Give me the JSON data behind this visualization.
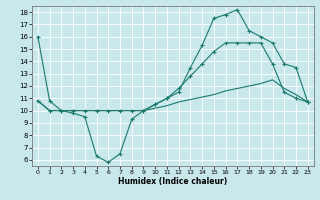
{
  "bg_color": "#c8e8ec",
  "grid_color": "#b0d8dc",
  "line_color": "#1a7a6e",
  "xlabel": "Humidex (Indice chaleur)",
  "xlim": [
    -0.5,
    23.5
  ],
  "ylim": [
    5.5,
    18.5
  ],
  "xticks": [
    0,
    1,
    2,
    3,
    4,
    5,
    6,
    7,
    8,
    9,
    10,
    11,
    12,
    13,
    14,
    15,
    16,
    17,
    18,
    19,
    20,
    21,
    22,
    23
  ],
  "yticks": [
    6,
    7,
    8,
    9,
    10,
    11,
    12,
    13,
    14,
    15,
    16,
    17,
    18
  ],
  "line1_x": [
    0,
    1,
    2,
    3,
    4,
    5,
    6,
    7,
    8,
    9,
    10,
    11,
    12,
    13,
    14,
    15,
    16,
    17,
    18,
    19,
    20,
    21,
    22,
    23
  ],
  "line1_y": [
    16.0,
    10.8,
    10.0,
    9.8,
    9.5,
    6.3,
    5.8,
    6.5,
    9.3,
    10.0,
    10.5,
    11.0,
    11.5,
    13.5,
    15.3,
    17.5,
    17.8,
    18.2,
    16.5,
    16.0,
    15.5,
    13.8,
    13.5,
    10.7
  ],
  "line2_x": [
    0,
    1,
    2,
    3,
    4,
    5,
    6,
    7,
    8,
    9,
    10,
    11,
    12,
    13,
    14,
    15,
    16,
    17,
    18,
    19,
    20,
    21,
    22,
    23
  ],
  "line2_y": [
    10.8,
    10.0,
    10.0,
    10.0,
    10.0,
    10.0,
    10.0,
    10.0,
    10.0,
    10.0,
    10.2,
    10.4,
    10.7,
    10.9,
    11.1,
    11.3,
    11.6,
    11.8,
    12.0,
    12.2,
    12.5,
    11.8,
    11.3,
    10.7
  ],
  "line3_x": [
    0,
    1,
    2,
    3,
    4,
    5,
    6,
    7,
    8,
    9,
    10,
    11,
    12,
    13,
    14,
    15,
    16,
    17,
    18,
    19,
    20,
    21,
    22,
    23
  ],
  "line3_y": [
    10.8,
    10.0,
    10.0,
    10.0,
    10.0,
    10.0,
    10.0,
    10.0,
    10.0,
    10.0,
    10.5,
    11.0,
    11.8,
    12.8,
    13.8,
    14.8,
    15.5,
    15.5,
    15.5,
    15.5,
    13.8,
    11.5,
    11.0,
    10.7
  ]
}
